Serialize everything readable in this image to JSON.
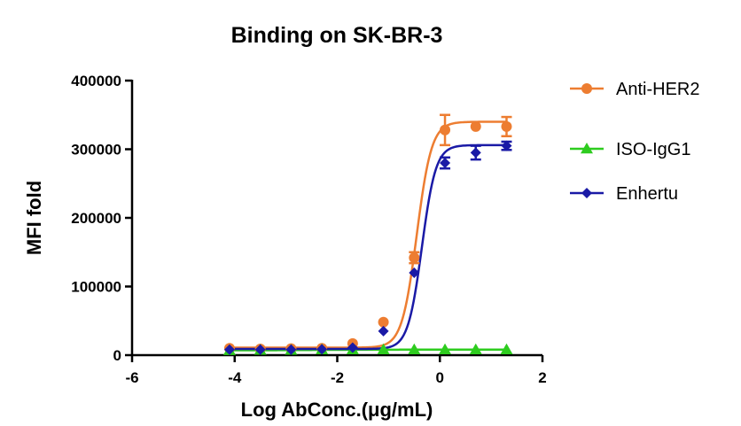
{
  "chart_data": {
    "type": "scatter",
    "title": "Binding on SK-BR-3",
    "xlabel": "Log AbConc.(μg/mL)",
    "ylabel": "MFI fold",
    "xlim": [
      -6,
      2
    ],
    "ylim": [
      0,
      400000
    ],
    "xticks": [
      -6,
      -4,
      -2,
      0,
      2
    ],
    "yticks": [
      0,
      100000,
      200000,
      300000,
      400000
    ],
    "legend_position": "right",
    "grid": false,
    "series": [
      {
        "name": "Anti-HER2",
        "color": "#ED7D31",
        "marker": "circle",
        "x": [
          -4.1,
          -3.5,
          -2.9,
          -2.3,
          -1.7,
          -1.1,
          -0.5,
          0.1,
          0.7,
          1.3
        ],
        "y": [
          10000,
          9000,
          9500,
          10000,
          17000,
          48000,
          142000,
          328000,
          333000,
          333000
        ],
        "err": [
          0,
          0,
          0,
          0,
          0,
          0,
          8000,
          22000,
          0,
          14000
        ],
        "fit": {
          "bottom": 11000,
          "top": 340000,
          "logEC50": -0.45,
          "hill": 3.0
        }
      },
      {
        "name": "ISO-IgG1",
        "color": "#2ECC1F",
        "marker": "triangle",
        "x": [
          -4.1,
          -3.5,
          -2.9,
          -2.3,
          -1.7,
          -1.1,
          -0.5,
          0.1,
          0.7,
          1.3
        ],
        "y": [
          7000,
          7500,
          7500,
          8000,
          8000,
          8000,
          8000,
          8000,
          8000,
          8000
        ],
        "err": [
          0,
          0,
          0,
          0,
          0,
          0,
          0,
          0,
          0,
          0
        ],
        "fit": {
          "bottom": 7000,
          "top": 8000,
          "logEC50": -2.5,
          "hill": 1.0
        }
      },
      {
        "name": "Enhertu",
        "color": "#1A1AA6",
        "marker": "diamond",
        "x": [
          -4.1,
          -3.5,
          -2.9,
          -2.3,
          -1.7,
          -1.1,
          -0.5,
          0.1,
          0.7,
          1.3
        ],
        "y": [
          8000,
          8000,
          8000,
          8500,
          11000,
          35000,
          120000,
          280000,
          295000,
          305000
        ],
        "err": [
          0,
          0,
          0,
          0,
          0,
          0,
          0,
          8000,
          10000,
          6000
        ],
        "fit": {
          "bottom": 9000,
          "top": 306000,
          "logEC50": -0.35,
          "hill": 3.2
        }
      }
    ]
  }
}
